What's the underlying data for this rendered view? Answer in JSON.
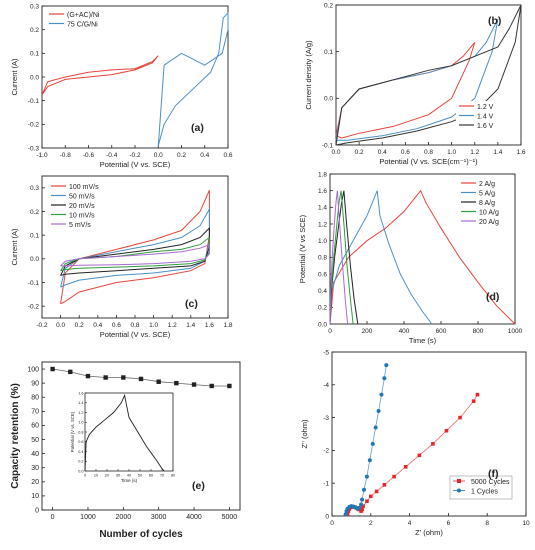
{
  "chart_data": [
    {
      "panel": "(a)",
      "type": "line",
      "xlabel": "Potential (V vs. SCE)",
      "ylabel": "Current (A)",
      "xlim": [
        -1.0,
        0.6
      ],
      "ylim": [
        -0.3,
        0.3
      ],
      "xticks": [
        "-1.0",
        "-0.8",
        "-0.6",
        "-0.4",
        "-0.2",
        "0.0",
        "0.2",
        "0.4",
        "0.6"
      ],
      "yticks": [
        "-0.3",
        "-0.2",
        "-0.1",
        "0.0",
        "0.1",
        "0.2",
        "0.3"
      ],
      "legend_position": "top-left",
      "series": [
        {
          "name": "(G+AC)/Ni",
          "color": "#e8443a",
          "x": [
            -1.0,
            -0.95,
            -0.8,
            -0.6,
            -0.4,
            -0.2,
            -0.05,
            0.0,
            -0.05,
            -0.2,
            -0.4,
            -0.6,
            -0.8,
            -0.95,
            -1.0
          ],
          "y": [
            -0.075,
            -0.04,
            -0.01,
            0.0,
            0.01,
            0.03,
            0.06,
            0.09,
            0.065,
            0.035,
            0.03,
            0.02,
            0.0,
            -0.02,
            -0.075
          ]
        },
        {
          "name": "75 C/G/Ni",
          "color": "#4a90c8",
          "x": [
            0.0,
            0.05,
            0.15,
            0.3,
            0.45,
            0.52,
            0.56,
            0.6,
            0.6,
            0.55,
            0.4,
            0.2,
            0.05,
            0.0
          ],
          "y": [
            -0.29,
            -0.2,
            -0.12,
            -0.05,
            0.02,
            0.1,
            0.25,
            0.27,
            0.2,
            0.1,
            0.05,
            0.1,
            0.05,
            -0.29
          ]
        }
      ]
    },
    {
      "panel": "(b)",
      "type": "line",
      "xlabel": "Potential (V vs. SCE(cm⁻¹)⁻¹)",
      "ylabel": "Current density (A/g)",
      "xlim": [
        0.0,
        1.6
      ],
      "ylim": [
        -0.1,
        0.2
      ],
      "xticks": [
        "0.0",
        "0.2",
        "0.4",
        "0.6",
        "0.8",
        "1.0",
        "1.2",
        "1.4",
        "1.6"
      ],
      "yticks": [
        "-0.1",
        "0.0",
        "0.1",
        "0.2"
      ],
      "legend_position": "bottom-right",
      "series": [
        {
          "name": "1.2 V",
          "color": "#e8443a",
          "x": [
            0.0,
            0.05,
            0.2,
            0.5,
            0.8,
            1.0,
            1.1,
            1.2,
            1.15,
            1.0,
            0.8,
            0.5,
            0.2,
            0.05,
            0.0
          ],
          "y": [
            -0.08,
            -0.02,
            0.02,
            0.04,
            0.055,
            0.07,
            0.09,
            0.12,
            0.08,
            0.0,
            -0.035,
            -0.06,
            -0.075,
            -0.085,
            -0.08
          ]
        },
        {
          "name": "1.4 V",
          "color": "#4a90c8",
          "x": [
            0.0,
            0.05,
            0.2,
            0.5,
            0.8,
            1.0,
            1.2,
            1.3,
            1.4,
            1.35,
            1.2,
            1.0,
            0.7,
            0.4,
            0.1,
            0.0
          ],
          "y": [
            -0.09,
            -0.02,
            0.02,
            0.04,
            0.055,
            0.07,
            0.09,
            0.12,
            0.17,
            0.1,
            0.0,
            -0.04,
            -0.065,
            -0.08,
            -0.09,
            -0.09
          ]
        },
        {
          "name": "1.6 V",
          "color": "#333333",
          "x": [
            0.0,
            0.05,
            0.2,
            0.5,
            0.8,
            1.0,
            1.2,
            1.4,
            1.5,
            1.6,
            1.55,
            1.4,
            1.2,
            1.0,
            0.7,
            0.4,
            0.1,
            0.0
          ],
          "y": [
            -0.1,
            -0.02,
            0.02,
            0.04,
            0.06,
            0.07,
            0.09,
            0.11,
            0.15,
            0.2,
            0.12,
            0.02,
            -0.03,
            -0.05,
            -0.07,
            -0.085,
            -0.095,
            -0.1
          ]
        }
      ]
    },
    {
      "panel": "(c)",
      "type": "line",
      "xlabel": "Potential (V vs. SCE)",
      "ylabel": "Current (A)",
      "xlim": [
        -0.2,
        1.8
      ],
      "ylim": [
        -0.25,
        0.35
      ],
      "xticks": [
        "-0.2",
        "0.0",
        "0.2",
        "0.4",
        "0.6",
        "0.8",
        "1.0",
        "1.2",
        "1.4",
        "1.6",
        "1.8"
      ],
      "yticks": [
        "-0.2",
        "-0.1",
        "0.0",
        "0.1",
        "0.2",
        "0.3"
      ],
      "legend_position": "top-left",
      "series": [
        {
          "name": "100 mV/s",
          "color": "#e8443a",
          "x": [
            0.0,
            0.05,
            0.2,
            0.6,
            1.0,
            1.3,
            1.5,
            1.6,
            1.6,
            1.55,
            1.4,
            1.0,
            0.6,
            0.2,
            0.05,
            0.0
          ],
          "y": [
            -0.19,
            -0.06,
            0.0,
            0.04,
            0.08,
            0.12,
            0.2,
            0.29,
            0.1,
            -0.02,
            -0.05,
            -0.08,
            -0.1,
            -0.14,
            -0.18,
            -0.19
          ]
        },
        {
          "name": "50 mV/s",
          "color": "#4a90c8",
          "x": [
            0.0,
            0.05,
            0.2,
            0.6,
            1.0,
            1.3,
            1.5,
            1.6,
            1.6,
            1.55,
            1.4,
            1.0,
            0.6,
            0.2,
            0.05,
            0.0
          ],
          "y": [
            -0.12,
            -0.04,
            0.0,
            0.03,
            0.06,
            0.09,
            0.14,
            0.21,
            0.07,
            -0.01,
            -0.04,
            -0.06,
            -0.07,
            -0.09,
            -0.11,
            -0.12
          ]
        },
        {
          "name": "20 mV/s",
          "color": "#222222",
          "x": [
            0.0,
            0.05,
            0.2,
            0.6,
            1.0,
            1.3,
            1.5,
            1.6,
            1.6,
            1.55,
            1.4,
            1.0,
            0.6,
            0.2,
            0.05,
            0.0
          ],
          "y": [
            -0.07,
            -0.03,
            0.0,
            0.02,
            0.04,
            0.06,
            0.09,
            0.13,
            0.05,
            -0.01,
            -0.03,
            -0.04,
            -0.05,
            -0.06,
            -0.065,
            -0.07
          ]
        },
        {
          "name": "10 mV/s",
          "color": "#2e9e3e",
          "x": [
            0.0,
            0.05,
            0.2,
            0.6,
            1.0,
            1.3,
            1.5,
            1.6,
            1.6,
            1.55,
            1.4,
            1.0,
            0.6,
            0.2,
            0.05,
            0.0
          ],
          "y": [
            -0.05,
            -0.02,
            0.0,
            0.01,
            0.03,
            0.04,
            0.06,
            0.09,
            0.03,
            -0.005,
            -0.02,
            -0.03,
            -0.035,
            -0.04,
            -0.045,
            -0.05
          ]
        },
        {
          "name": "5 mV/s",
          "color": "#a86bd0",
          "x": [
            0.0,
            0.05,
            0.2,
            0.6,
            1.0,
            1.3,
            1.5,
            1.6,
            1.6,
            1.55,
            1.4,
            1.0,
            0.6,
            0.2,
            0.05,
            0.0
          ],
          "y": [
            -0.03,
            -0.01,
            0.0,
            0.01,
            0.02,
            0.03,
            0.045,
            0.06,
            0.02,
            0.0,
            -0.01,
            -0.02,
            -0.025,
            -0.027,
            -0.03,
            -0.03
          ]
        }
      ]
    },
    {
      "panel": "(d)",
      "type": "line",
      "xlabel": "Time (s)",
      "ylabel": "Potential (V vs SCE)",
      "xlim": [
        0,
        1000
      ],
      "ylim": [
        0.0,
        1.8
      ],
      "xticks": [
        "0",
        "200",
        "400",
        "600",
        "800",
        "1000"
      ],
      "yticks": [
        "0.0",
        "0.2",
        "0.4",
        "0.6",
        "0.8",
        "1.0",
        "1.2",
        "1.4",
        "1.6",
        "1.8"
      ],
      "legend_position": "top-right",
      "series": [
        {
          "name": "2 A/g",
          "color": "#e8443a",
          "x": [
            0,
            20,
            100,
            200,
            300,
            400,
            490,
            520,
            600,
            700,
            800,
            900,
            1000
          ],
          "y": [
            0.0,
            0.5,
            0.8,
            1.0,
            1.15,
            1.35,
            1.6,
            1.45,
            1.15,
            0.8,
            0.5,
            0.22,
            0.0
          ]
        },
        {
          "name": "5 A/g",
          "color": "#4a90c8",
          "x": [
            0,
            10,
            50,
            100,
            150,
            200,
            255,
            270,
            320,
            380,
            440,
            500,
            550
          ],
          "y": [
            0.0,
            0.4,
            0.7,
            0.9,
            1.1,
            1.3,
            1.6,
            1.3,
            0.95,
            0.6,
            0.35,
            0.15,
            0.0
          ]
        },
        {
          "name": "8 A/g",
          "color": "#222222",
          "x": [
            0,
            8,
            25,
            45,
            62,
            75,
            90,
            110,
            130,
            150
          ],
          "y": [
            0.0,
            0.4,
            0.8,
            1.15,
            1.45,
            1.6,
            1.2,
            0.7,
            0.3,
            0.0
          ]
        },
        {
          "name": "10 A/g",
          "color": "#2e9e3e",
          "x": [
            0,
            6,
            20,
            35,
            48,
            60,
            75,
            92,
            110,
            125
          ],
          "y": [
            0.0,
            0.4,
            0.8,
            1.15,
            1.45,
            1.6,
            1.2,
            0.7,
            0.3,
            0.0
          ]
        },
        {
          "name": "20 A/g",
          "color": "#a86bd0",
          "x": [
            0,
            4,
            12,
            22,
            32,
            40,
            52,
            68,
            82,
            95
          ],
          "y": [
            0.0,
            0.4,
            0.8,
            1.15,
            1.45,
            1.6,
            1.2,
            0.7,
            0.3,
            0.0
          ]
        }
      ]
    },
    {
      "panel": "(e)",
      "type": "scatter",
      "xlabel": "Number of cycles",
      "ylabel": "Capacity retention (%)",
      "xlim": [
        -300,
        5300
      ],
      "ylim": [
        0,
        105
      ],
      "xticks": [
        "0",
        "1000",
        "2000",
        "3000",
        "4000",
        "5000"
      ],
      "yticks": [
        "0",
        "10",
        "20",
        "30",
        "40",
        "50",
        "60",
        "70",
        "80",
        "90",
        "100"
      ],
      "series": [
        {
          "name": "",
          "color": "#222222",
          "x": [
            0,
            500,
            1000,
            1500,
            2000,
            2500,
            3000,
            3500,
            4000,
            4500,
            5000
          ],
          "y": [
            100,
            98,
            95,
            94,
            94,
            93,
            91,
            90,
            89,
            88,
            88
          ]
        }
      ],
      "inset": {
        "xlabel": "Time (s)",
        "ylabel": "Potential (V vs. SCE)",
        "xlim": [
          0,
          80
        ],
        "ylim": [
          0.0,
          1.6
        ],
        "xticks": [
          "0",
          "10",
          "20",
          "30",
          "40",
          "50",
          "60",
          "70",
          "80"
        ],
        "yticks": [
          "0.0",
          "0.2",
          "0.4",
          "0.6",
          "0.8",
          "1.0",
          "1.2",
          "1.4",
          "1.6"
        ],
        "series": [
          {
            "name": "",
            "color": "#222222",
            "x": [
              0,
              1,
              4,
              10,
              18,
              26,
              33,
              36,
              40,
              48,
              56,
              64,
              70,
              72
            ],
            "y": [
              0.0,
              0.6,
              0.75,
              0.9,
              1.05,
              1.2,
              1.4,
              1.55,
              1.1,
              0.8,
              0.5,
              0.25,
              0.05,
              0.0
            ]
          }
        ]
      }
    },
    {
      "panel": "(f)",
      "type": "scatter",
      "xlabel": "Z' (ohm)",
      "ylabel": "Z'' (ohm)",
      "xlim": [
        0,
        10
      ],
      "ylim": [
        0,
        -5
      ],
      "xticks": [
        "0",
        "2",
        "4",
        "6",
        "8",
        "10"
      ],
      "yticks": [
        "0",
        "-1",
        "-2",
        "-3",
        "-4",
        "-5"
      ],
      "legend_position": "bottom-right",
      "series": [
        {
          "name": "5000 Cycles",
          "color": "#e8252b",
          "x": [
            0.8,
            0.85,
            0.9,
            1.0,
            1.1,
            1.2,
            1.3,
            1.4,
            1.5,
            1.55,
            1.6,
            1.8,
            2.0,
            2.3,
            2.7,
            3.2,
            3.8,
            4.5,
            5.2,
            5.9,
            6.6,
            7.3,
            7.5
          ],
          "y": [
            -0.05,
            -0.15,
            -0.22,
            -0.27,
            -0.28,
            -0.27,
            -0.24,
            -0.2,
            -0.15,
            -0.2,
            -0.3,
            -0.45,
            -0.6,
            -0.75,
            -0.95,
            -1.2,
            -1.5,
            -1.85,
            -2.2,
            -2.6,
            -3.0,
            -3.5,
            -3.7
          ]
        },
        {
          "name": "1 Cycles",
          "color": "#1f77b4",
          "x": [
            0.7,
            0.75,
            0.8,
            0.9,
            1.0,
            1.1,
            1.2,
            1.3,
            1.4,
            1.5,
            1.55,
            1.65,
            1.8,
            1.95,
            2.1,
            2.25,
            2.4,
            2.55,
            2.7,
            2.8
          ],
          "y": [
            -0.05,
            -0.15,
            -0.22,
            -0.28,
            -0.3,
            -0.29,
            -0.26,
            -0.22,
            -0.25,
            -0.35,
            -0.5,
            -0.8,
            -1.2,
            -1.7,
            -2.2,
            -2.7,
            -3.2,
            -3.7,
            -4.2,
            -4.6
          ]
        }
      ]
    }
  ]
}
